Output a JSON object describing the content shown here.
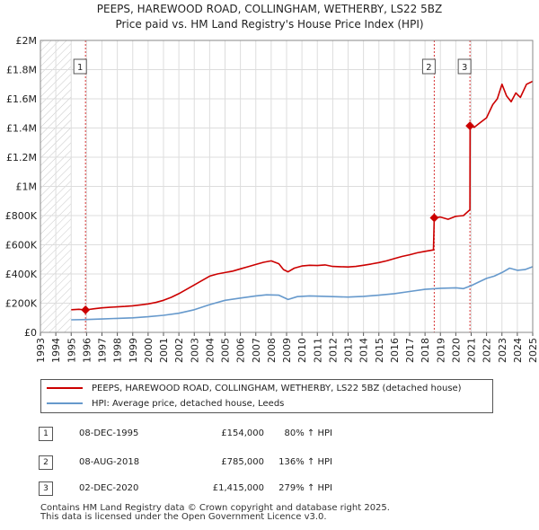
{
  "chart_data": {
    "type": "line",
    "title": "PEEPS, HAREWOOD ROAD, COLLINGHAM, WETHERBY, LS22 5BZ",
    "subtitle": "Price paid vs. HM Land Registry's House Price Index (HPI)",
    "xlabel": "",
    "ylabel": "",
    "xlim": [
      1993,
      2025
    ],
    "ylim": [
      0,
      2000000
    ],
    "y_ticks": [
      {
        "value": 0,
        "label": "£0"
      },
      {
        "value": 200000,
        "label": "£200K"
      },
      {
        "value": 400000,
        "label": "£400K"
      },
      {
        "value": 600000,
        "label": "£600K"
      },
      {
        "value": 800000,
        "label": "£800K"
      },
      {
        "value": 1000000,
        "label": "£1M"
      },
      {
        "value": 1200000,
        "label": "£1.2M"
      },
      {
        "value": 1400000,
        "label": "£1.4M"
      },
      {
        "value": 1600000,
        "label": "£1.6M"
      },
      {
        "value": 1800000,
        "label": "£1.8M"
      },
      {
        "value": 2000000,
        "label": "£2M"
      }
    ],
    "x_ticks": [
      "1993",
      "1994",
      "1995",
      "1996",
      "1997",
      "1998",
      "1999",
      "2000",
      "2001",
      "2002",
      "2003",
      "2004",
      "2005",
      "2006",
      "2007",
      "2008",
      "2009",
      "2010",
      "2011",
      "2012",
      "2013",
      "2014",
      "2015",
      "2016",
      "2017",
      "2018",
      "2019",
      "2020",
      "2021",
      "2022",
      "2023",
      "2024",
      "2025"
    ],
    "grid": true,
    "hatched_before": 1995.0,
    "series": [
      {
        "name": "PEEPS, HAREWOOD ROAD, COLLINGHAM, WETHERBY, LS22 5BZ (detached house)",
        "color": "#cc0000",
        "x": [
          1995.0,
          1995.5,
          1995.93,
          1996.5,
          1997,
          1997.5,
          1998,
          1998.5,
          1999,
          1999.5,
          2000,
          2000.5,
          2001,
          2001.5,
          2002,
          2002.5,
          2003,
          2003.5,
          2004,
          2004.5,
          2005,
          2005.5,
          2006,
          2006.5,
          2007,
          2007.5,
          2008,
          2008.5,
          2008.8,
          2009.1,
          2009.5,
          2010,
          2010.5,
          2011,
          2011.5,
          2012,
          2012.5,
          2013,
          2013.5,
          2014,
          2014.5,
          2015,
          2015.5,
          2016,
          2016.5,
          2017,
          2017.5,
          2018,
          2018.55,
          2018.6,
          2019,
          2019.5,
          2020,
          2020.5,
          2020.92,
          2020.93,
          2021.2,
          2021.5,
          2022,
          2022.4,
          2022.7,
          2023,
          2023.3,
          2023.6,
          2023.9,
          2024.2,
          2024.6,
          2025
        ],
        "y": [
          155000,
          158000,
          154000,
          162000,
          168000,
          172000,
          175000,
          178000,
          182000,
          188000,
          195000,
          205000,
          220000,
          240000,
          265000,
          295000,
          325000,
          355000,
          385000,
          400000,
          410000,
          420000,
          435000,
          450000,
          465000,
          480000,
          490000,
          470000,
          430000,
          415000,
          440000,
          455000,
          460000,
          458000,
          462000,
          452000,
          450000,
          448000,
          452000,
          460000,
          468000,
          478000,
          490000,
          505000,
          520000,
          532000,
          545000,
          555000,
          565000,
          785000,
          790000,
          775000,
          795000,
          800000,
          840000,
          1415000,
          1405000,
          1430000,
          1470000,
          1560000,
          1600000,
          1700000,
          1620000,
          1580000,
          1640000,
          1610000,
          1700000,
          1720000
        ]
      },
      {
        "name": "HPI: Average price, detached house, Leeds",
        "color": "#6699cc",
        "x": [
          1995.0,
          1996,
          1997,
          1998,
          1999,
          2000,
          2001,
          2002,
          2003,
          2004,
          2005,
          2006,
          2007,
          2007.7,
          2008.5,
          2009.1,
          2009.7,
          2010.5,
          2011,
          2012,
          2013,
          2014,
          2015,
          2016,
          2017,
          2018,
          2019,
          2020,
          2020.5,
          2021,
          2021.5,
          2022,
          2022.5,
          2023,
          2023.5,
          2024,
          2024.5,
          2025
        ],
        "y": [
          86000,
          88000,
          92000,
          96000,
          100000,
          107000,
          117000,
          131000,
          155000,
          190000,
          220000,
          235000,
          250000,
          257000,
          255000,
          225000,
          245000,
          250000,
          248000,
          245000,
          242000,
          247000,
          255000,
          265000,
          280000,
          295000,
          302000,
          305000,
          300000,
          320000,
          345000,
          370000,
          385000,
          410000,
          440000,
          425000,
          430000,
          450000
        ]
      }
    ],
    "sales": [
      {
        "id": "1",
        "x": 1995.93,
        "y": 154000,
        "date": "08-DEC-1995",
        "price": "£154,000",
        "hpi": "80% ↑ HPI"
      },
      {
        "id": "2",
        "x": 2018.6,
        "y": 785000,
        "date": "08-AUG-2018",
        "price": "£785,000",
        "hpi": "136% ↑ HPI"
      },
      {
        "id": "3",
        "x": 2020.92,
        "y": 1415000,
        "date": "02-DEC-2020",
        "price": "£1,415,000",
        "hpi": "279% ↑ HPI"
      }
    ],
    "legend": {
      "placement": "below",
      "entries": [
        "PEEPS, HAREWOOD ROAD, COLLINGHAM, WETHERBY, LS22 5BZ (detached house)",
        "HPI: Average price, detached house, Leeds"
      ]
    }
  },
  "footer": {
    "line1": "Contains HM Land Registry data © Crown copyright and database right 2025.",
    "line2": "This data is licensed under the Open Government Licence v3.0."
  },
  "colors": {
    "price_line": "#cc0000",
    "hpi_line": "#6699cc",
    "grid": "#dddddd",
    "marker_line": "#cc0000"
  }
}
